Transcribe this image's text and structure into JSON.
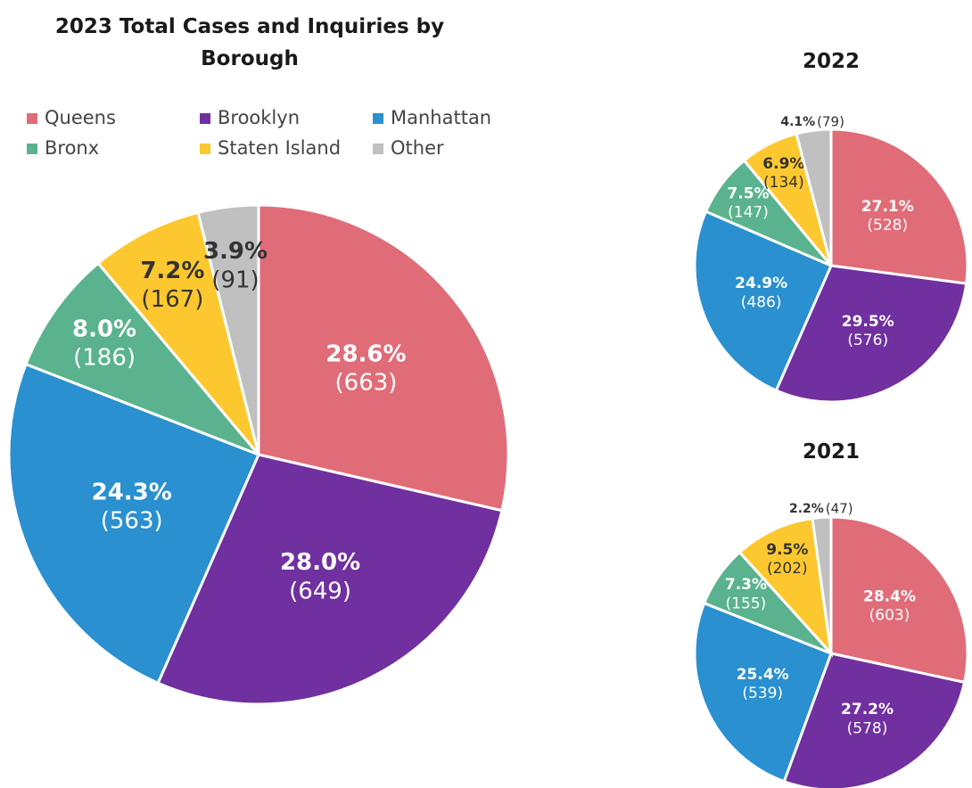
{
  "chart_data": [
    {
      "type": "pie",
      "title": "2023 Total Cases and Inquiries by Borough",
      "categories": [
        "Queens",
        "Brooklyn",
        "Manhattan",
        "Bronx",
        "Staten Island",
        "Other"
      ],
      "values": [
        28.6,
        28.0,
        24.3,
        8.0,
        7.2,
        3.9
      ],
      "value_labels": [
        "28.6%",
        "28.0%",
        "24.3%",
        "8.0%",
        "7.2%",
        "3.9%"
      ],
      "count_labels": [
        "(663)",
        "(649)",
        "(563)",
        "(186)",
        "(167)",
        "(91)"
      ],
      "colors": [
        "#e06c78",
        "#7030a0",
        "#2a90d0",
        "#5ab38e",
        "#fdc82f",
        "#c0c0c0"
      ],
      "label_colors": [
        "#ffffff",
        "#ffffff",
        "#ffffff",
        "#ffffff",
        "#333333",
        "#333333"
      ],
      "legend": "top"
    },
    {
      "type": "pie",
      "title": "2022",
      "values": [
        27.1,
        29.5,
        24.9,
        7.5,
        6.9,
        4.1
      ],
      "value_labels": [
        "27.1%",
        "29.5%",
        "24.9%",
        "7.5%",
        "6.9%",
        "4.1%"
      ],
      "count_labels": [
        "(528)",
        "(576)",
        "(486)",
        "(147)",
        "(134)",
        "(79)"
      ],
      "colors": [
        "#e06c78",
        "#7030a0",
        "#2a90d0",
        "#5ab38e",
        "#fdc82f",
        "#c0c0c0"
      ],
      "label_colors": [
        "#ffffff",
        "#ffffff",
        "#ffffff",
        "#ffffff",
        "#333333",
        "#333333"
      ]
    },
    {
      "type": "pie",
      "title": "2021",
      "values": [
        28.4,
        27.2,
        25.4,
        7.3,
        9.5,
        2.2
      ],
      "value_labels": [
        "28.4%",
        "27.2%",
        "25.4%",
        "7.3%",
        "9.5%",
        "2.2%"
      ],
      "count_labels": [
        "(603)",
        "(578)",
        "(539)",
        "(155)",
        "(202)",
        "(47)"
      ],
      "colors": [
        "#e06c78",
        "#7030a0",
        "#2a90d0",
        "#5ab38e",
        "#fdc82f",
        "#c0c0c0"
      ],
      "label_colors": [
        "#ffffff",
        "#ffffff",
        "#ffffff",
        "#ffffff",
        "#333333",
        "#333333"
      ]
    }
  ]
}
